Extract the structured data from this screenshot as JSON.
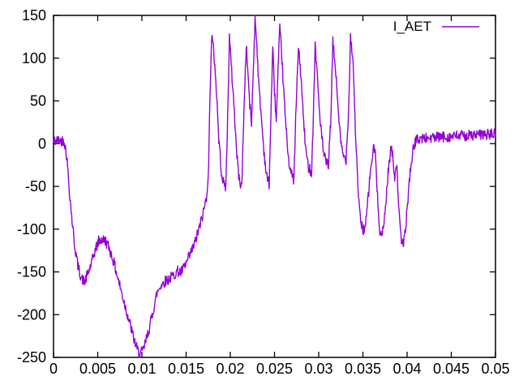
{
  "window": {
    "background": "#ffffff",
    "border_color": "#000000",
    "text_color": "#000000"
  },
  "chart_data": {
    "type": "line",
    "title": "",
    "xlabel": "",
    "ylabel": "",
    "xlim": [
      0,
      0.05
    ],
    "ylim": [
      -250,
      150
    ],
    "grid": false,
    "legend_position": "top-right-inside",
    "xticks": [
      0,
      0.005,
      0.01,
      0.015,
      0.02,
      0.025,
      0.03,
      0.035,
      0.04,
      0.045,
      0.05
    ],
    "xtick_labels": [
      "0",
      "0.005",
      "0.01",
      "0.015",
      "0.02",
      "0.025",
      "0.03",
      "0.035",
      "0.04",
      "0.045",
      "0.05"
    ],
    "yticks": [
      -250,
      -200,
      -150,
      -100,
      -50,
      0,
      50,
      100,
      150
    ],
    "ytick_labels": [
      "-250",
      "-200",
      "-150",
      "-100",
      "-50",
      "0",
      "50",
      "100",
      "150"
    ],
    "noise_amp": 6.5,
    "sample_step": 5e-05,
    "series": [
      {
        "name": "I_AET",
        "color": "#9400d3",
        "keypoints": [
          [
            0,
            3
          ],
          [
            0.0012,
            4
          ],
          [
            0.0015,
            -15
          ],
          [
            0.0018,
            -55
          ],
          [
            0.0021,
            -90
          ],
          [
            0.0024,
            -120
          ],
          [
            0.0028,
            -145
          ],
          [
            0.0032,
            -158
          ],
          [
            0.0035,
            -162
          ],
          [
            0.0039,
            -152
          ],
          [
            0.0043,
            -140
          ],
          [
            0.0047,
            -125
          ],
          [
            0.0051,
            -114
          ],
          [
            0.0055,
            -112
          ],
          [
            0.0059,
            -114
          ],
          [
            0.0063,
            -122
          ],
          [
            0.0068,
            -138
          ],
          [
            0.0073,
            -158
          ],
          [
            0.0079,
            -182
          ],
          [
            0.0085,
            -205
          ],
          [
            0.009,
            -225
          ],
          [
            0.0094,
            -239
          ],
          [
            0.0097,
            -246
          ],
          [
            0.0101,
            -243
          ],
          [
            0.0105,
            -229
          ],
          [
            0.0109,
            -213
          ],
          [
            0.0113,
            -194
          ],
          [
            0.0117,
            -175
          ],
          [
            0.0121,
            -166
          ],
          [
            0.0126,
            -161
          ],
          [
            0.0131,
            -158
          ],
          [
            0.0136,
            -154
          ],
          [
            0.014,
            -149
          ],
          [
            0.0144,
            -151
          ],
          [
            0.0149,
            -143
          ],
          [
            0.0154,
            -131
          ],
          [
            0.0159,
            -119
          ],
          [
            0.0164,
            -102
          ],
          [
            0.0169,
            -83
          ],
          [
            0.0173,
            -62
          ],
          [
            0.01755,
            -30
          ],
          [
            0.0177,
            60
          ],
          [
            0.0179,
            126
          ],
          [
            0.0181,
            110
          ],
          [
            0.0183,
            85
          ],
          [
            0.0185,
            48
          ],
          [
            0.0187,
            5
          ],
          [
            0.019,
            -32
          ],
          [
            0.0192,
            -46
          ],
          [
            0.0195,
            -50
          ],
          [
            0.0197,
            30
          ],
          [
            0.0199,
            125
          ],
          [
            0.0201,
            92
          ],
          [
            0.0204,
            48
          ],
          [
            0.0207,
            -8
          ],
          [
            0.021,
            -42
          ],
          [
            0.0213,
            -50
          ],
          [
            0.0215,
            25
          ],
          [
            0.0218,
            116
          ],
          [
            0.022,
            82
          ],
          [
            0.0222,
            45
          ],
          [
            0.0224,
            24
          ],
          [
            0.0226,
            85
          ],
          [
            0.0228,
            148
          ],
          [
            0.023,
            118
          ],
          [
            0.0232,
            72
          ],
          [
            0.0235,
            32
          ],
          [
            0.0238,
            -8
          ],
          [
            0.0241,
            -38
          ],
          [
            0.0244,
            -47
          ],
          [
            0.0246,
            35
          ],
          [
            0.0248,
            112
          ],
          [
            0.025,
            62
          ],
          [
            0.0252,
            26
          ],
          [
            0.0254,
            85
          ],
          [
            0.0256,
            134
          ],
          [
            0.0258,
            108
          ],
          [
            0.026,
            68
          ],
          [
            0.0263,
            18
          ],
          [
            0.0266,
            -18
          ],
          [
            0.0269,
            -36
          ],
          [
            0.0272,
            -42
          ],
          [
            0.0274,
            30
          ],
          [
            0.0277,
            112
          ],
          [
            0.0279,
            92
          ],
          [
            0.0282,
            42
          ],
          [
            0.0285,
            -4
          ],
          [
            0.0288,
            -26
          ],
          [
            0.0292,
            -33
          ],
          [
            0.0294,
            35
          ],
          [
            0.0296,
            116
          ],
          [
            0.0298,
            86
          ],
          [
            0.0301,
            36
          ],
          [
            0.0305,
            -8
          ],
          [
            0.0308,
            -22
          ],
          [
            0.0311,
            -25
          ],
          [
            0.0314,
            35
          ],
          [
            0.0316,
            119
          ],
          [
            0.0319,
            88
          ],
          [
            0.0322,
            42
          ],
          [
            0.0325,
            0
          ],
          [
            0.0328,
            -15
          ],
          [
            0.0331,
            -18
          ],
          [
            0.0334,
            45
          ],
          [
            0.0336,
            126
          ],
          [
            0.0339,
            95
          ],
          [
            0.0341,
            30
          ],
          [
            0.0344,
            -45
          ],
          [
            0.0347,
            -88
          ],
          [
            0.035,
            -101
          ],
          [
            0.0353,
            -97
          ],
          [
            0.0356,
            -62
          ],
          [
            0.0359,
            -28
          ],
          [
            0.0362,
            -6
          ],
          [
            0.0364,
            -8
          ],
          [
            0.0366,
            -55
          ],
          [
            0.0369,
            -100
          ],
          [
            0.0371,
            -108
          ],
          [
            0.0373,
            -102
          ],
          [
            0.0376,
            -68
          ],
          [
            0.0379,
            -28
          ],
          [
            0.0382,
            -4
          ],
          [
            0.0384,
            -18
          ],
          [
            0.0386,
            -38
          ],
          [
            0.0388,
            -22
          ],
          [
            0.039,
            -60
          ],
          [
            0.0392,
            -100
          ],
          [
            0.0394,
            -118
          ],
          [
            0.0397,
            -112
          ],
          [
            0.04,
            -78
          ],
          [
            0.0403,
            -38
          ],
          [
            0.0406,
            -12
          ],
          [
            0.0409,
            2
          ],
          [
            0.0413,
            6
          ],
          [
            0.043,
            7
          ],
          [
            0.046,
            9
          ],
          [
            0.048,
            10
          ],
          [
            0.05,
            11
          ]
        ]
      }
    ]
  }
}
